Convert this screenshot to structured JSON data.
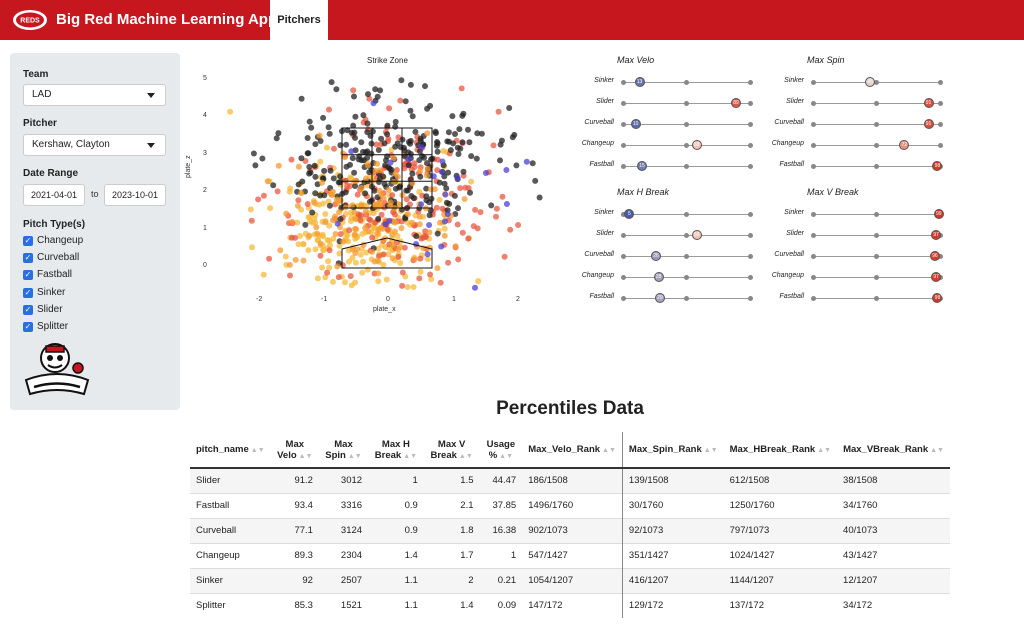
{
  "header": {
    "app_title": "Big Red Machine Learning App",
    "active_tab": "Pitchers",
    "logo_text": "REDS"
  },
  "sidebar": {
    "team_label": "Team",
    "team_value": "LAD",
    "pitcher_label": "Pitcher",
    "pitcher_value": "Kershaw, Clayton",
    "date_label": "Date Range",
    "date_start": "2021-04-01",
    "date_to": "to",
    "date_end": "2023-10-01",
    "pitch_types_label": "Pitch Type(s)",
    "pitch_types": [
      "Changeup",
      "Curveball",
      "Fastball",
      "Sinker",
      "Slider",
      "Splitter"
    ]
  },
  "strike_zone": {
    "title": "Strike Zone",
    "xlabel": "plate_x",
    "ylabel": "plate_z",
    "x_ticks": [
      "-2",
      "-1",
      "0",
      "1",
      "2"
    ],
    "y_ticks": [
      "5",
      "4",
      "3",
      "2",
      "1",
      "0"
    ]
  },
  "percentile_charts": [
    {
      "title": "Max Velo",
      "values": [
        13,
        89,
        10,
        58,
        15
      ]
    },
    {
      "title": "Max Spin",
      "values": [
        45,
        91,
        91,
        72,
        98
      ]
    },
    {
      "title": "Max H Break",
      "values": [
        5,
        58,
        26,
        28,
        29
      ]
    },
    {
      "title": "Max V Break",
      "values": [
        99,
        97,
        96,
        97,
        98
      ]
    }
  ],
  "percentile_pitches": [
    "Sinker",
    "Slider",
    "Curveball",
    "Changeup",
    "Fastball"
  ],
  "table": {
    "title": "Percentiles Data",
    "columns": [
      "pitch_name",
      "Max Velo",
      "Max Spin",
      "Max H Break",
      "Max V Break",
      "Usage %",
      "Max_Velo_Rank",
      "Max_Spin_Rank",
      "Max_HBreak_Rank",
      "Max_VBreak_Rank"
    ],
    "rows": [
      [
        "Slider",
        "91.2",
        "3012",
        "1",
        "1.5",
        "44.47",
        "186/1508",
        "139/1508",
        "612/1508",
        "38/1508"
      ],
      [
        "Fastball",
        "93.4",
        "3316",
        "0.9",
        "2.1",
        "37.85",
        "1496/1760",
        "30/1760",
        "1250/1760",
        "34/1760"
      ],
      [
        "Curveball",
        "77.1",
        "3124",
        "0.9",
        "1.8",
        "16.38",
        "902/1073",
        "92/1073",
        "797/1073",
        "40/1073"
      ],
      [
        "Changeup",
        "89.3",
        "2304",
        "1.4",
        "1.7",
        "1",
        "547/1427",
        "351/1427",
        "1024/1427",
        "43/1427"
      ],
      [
        "Sinker",
        "92",
        "2507",
        "1.1",
        "2",
        "0.21",
        "1054/1207",
        "416/1207",
        "1144/1207",
        "12/1207"
      ],
      [
        "Splitter",
        "85.3",
        "1521",
        "1.1",
        "1.4",
        "0.09",
        "147/172",
        "129/172",
        "137/172",
        "34/172"
      ]
    ]
  },
  "colors": {
    "brand_red": "#c6171f",
    "low_pct": "#3a4fa0",
    "high_pct": "#d7301f"
  }
}
